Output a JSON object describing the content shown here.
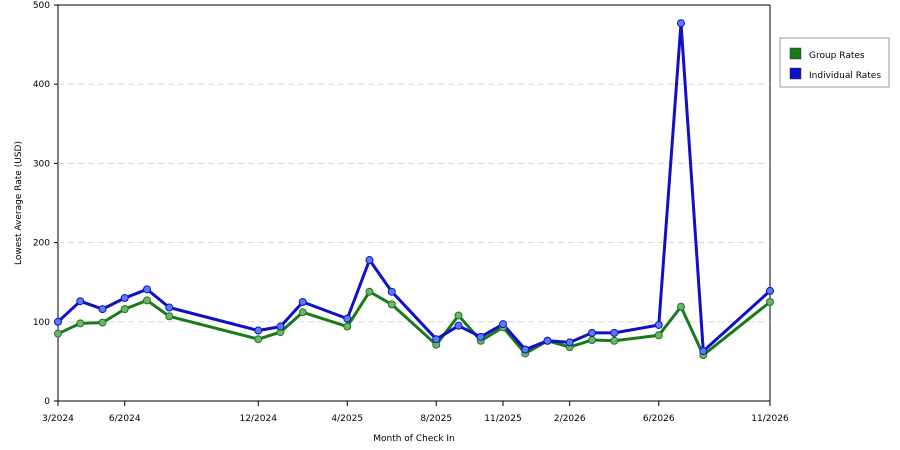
{
  "chart_data": {
    "type": "line",
    "xlabel": "Month of Check In",
    "ylabel": "Lowest Average Rate (USD)",
    "ylim": [
      0,
      500
    ],
    "y_ticks": [
      "0",
      "100",
      "200",
      "300",
      "400",
      "500"
    ],
    "x_tick_labels": [
      "3/2024",
      "6/2024",
      "12/2024",
      "4/2025",
      "8/2025",
      "11/2025",
      "2/2026",
      "6/2026",
      "11/2026"
    ],
    "grid": "horizontal dashed",
    "legend_position": "right",
    "x": [
      "3/2024",
      "4/2024",
      "5/2024",
      "6/2024",
      "7/2024",
      "8/2024",
      "12/2024",
      "1/2025",
      "2/2025",
      "4/2025",
      "5/2025",
      "6/2025",
      "8/2025",
      "9/2025",
      "10/2025",
      "11/2025",
      "12/2025",
      "1/2026",
      "2/2026",
      "3/2026",
      "4/2026",
      "6/2026",
      "7/2026",
      "8/2026",
      "11/2026"
    ],
    "series": [
      {
        "name": "Group Rates",
        "color": "#1a7a1a",
        "values": [
          85,
          98,
          99,
          116,
          127,
          107,
          78,
          87,
          112,
          94,
          138,
          122,
          71,
          108,
          76,
          93,
          60,
          76,
          68,
          77,
          76,
          83,
          119,
          58,
          125
        ]
      },
      {
        "name": "Individual Rates",
        "color": "#1010c8",
        "values": [
          100,
          126,
          116,
          130,
          141,
          118,
          89,
          94,
          125,
          104,
          178,
          138,
          78,
          95,
          81,
          97,
          65,
          76,
          74,
          86,
          86,
          96,
          477,
          63,
          139
        ]
      }
    ]
  }
}
